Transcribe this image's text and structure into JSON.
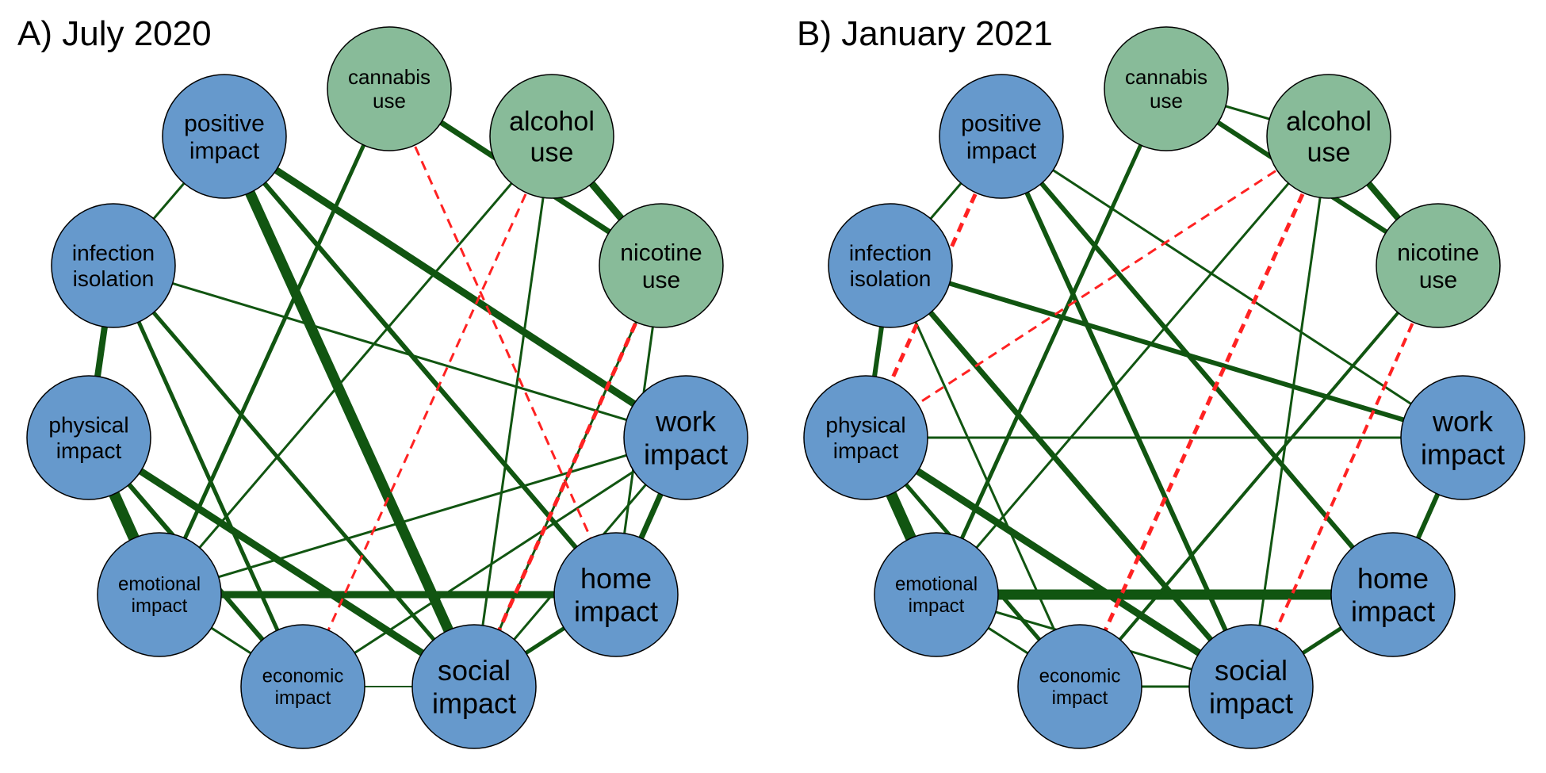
{
  "colors": {
    "impact_node": "#6699CC",
    "substance_node": "#88BB99",
    "positive_edge": "#115511",
    "negative_edge": "#FF2222"
  },
  "nodes": [
    {
      "id": "cannabis",
      "lines": [
        "cannabis",
        "use"
      ],
      "group": "substance"
    },
    {
      "id": "alcohol",
      "lines": [
        "alcohol",
        "use"
      ],
      "group": "substance"
    },
    {
      "id": "nicotine",
      "lines": [
        "nicotine",
        "use"
      ],
      "group": "substance"
    },
    {
      "id": "work",
      "lines": [
        "work",
        "impact"
      ],
      "group": "impact"
    },
    {
      "id": "home",
      "lines": [
        "home",
        "impact"
      ],
      "group": "impact"
    },
    {
      "id": "social",
      "lines": [
        "social",
        "impact"
      ],
      "group": "impact"
    },
    {
      "id": "economic",
      "lines": [
        "economic",
        "impact"
      ],
      "group": "impact"
    },
    {
      "id": "emotional",
      "lines": [
        "emotional",
        "impact"
      ],
      "group": "impact"
    },
    {
      "id": "physical",
      "lines": [
        "physical",
        "impact"
      ],
      "group": "impact"
    },
    {
      "id": "infection",
      "lines": [
        "infection",
        "isolation"
      ],
      "group": "impact"
    },
    {
      "id": "positive",
      "lines": [
        "positive",
        "impact"
      ],
      "group": "impact"
    }
  ],
  "panels": [
    {
      "title": "A) July 2020",
      "edges": [
        {
          "a": "cannabis",
          "b": "alcohol",
          "w": 0
        },
        {
          "a": "cannabis",
          "b": "nicotine",
          "w": 7
        },
        {
          "a": "alcohol",
          "b": "nicotine",
          "w": 9
        },
        {
          "a": "positive",
          "b": "infection",
          "w": 3
        },
        {
          "a": "positive",
          "b": "work",
          "w": 9
        },
        {
          "a": "positive",
          "b": "home",
          "w": 6
        },
        {
          "a": "positive",
          "b": "social",
          "w": 13
        },
        {
          "a": "infection",
          "b": "physical",
          "w": 8
        },
        {
          "a": "infection",
          "b": "work",
          "w": 3
        },
        {
          "a": "infection",
          "b": "economic",
          "w": 5
        },
        {
          "a": "infection",
          "b": "social",
          "w": 5
        },
        {
          "a": "physical",
          "b": "emotional",
          "w": 14
        },
        {
          "a": "physical",
          "b": "economic",
          "w": 6
        },
        {
          "a": "physical",
          "b": "social",
          "w": 9
        },
        {
          "a": "emotional",
          "b": "home",
          "w": 9
        },
        {
          "a": "emotional",
          "b": "economic",
          "w": 3
        },
        {
          "a": "emotional",
          "b": "work",
          "w": 3
        },
        {
          "a": "emotional",
          "b": "cannabis",
          "w": 5
        },
        {
          "a": "emotional",
          "b": "alcohol",
          "w": 3
        },
        {
          "a": "economic",
          "b": "social",
          "w": 2
        },
        {
          "a": "economic",
          "b": "work",
          "w": 3
        },
        {
          "a": "social",
          "b": "home",
          "w": 5
        },
        {
          "a": "social",
          "b": "alcohol",
          "w": 3
        },
        {
          "a": "social",
          "b": "nicotine",
          "w": 3
        },
        {
          "a": "home",
          "b": "work",
          "w": 7
        },
        {
          "a": "home",
          "b": "nicotine",
          "w": 3
        },
        {
          "a": "social",
          "b": "work",
          "w": 3
        },
        {
          "a": "cannabis",
          "b": "home",
          "w": -3
        },
        {
          "a": "alcohol",
          "b": "economic",
          "w": -3
        },
        {
          "a": "nicotine",
          "b": "social",
          "w": -5
        }
      ]
    },
    {
      "title": "B) January 2021",
      "edges": [
        {
          "a": "cannabis",
          "b": "alcohol",
          "w": 3
        },
        {
          "a": "cannabis",
          "b": "nicotine",
          "w": 6
        },
        {
          "a": "alcohol",
          "b": "nicotine",
          "w": 8
        },
        {
          "a": "positive",
          "b": "infection",
          "w": 3
        },
        {
          "a": "positive",
          "b": "work",
          "w": 3
        },
        {
          "a": "positive",
          "b": "home",
          "w": 6
        },
        {
          "a": "positive",
          "b": "social",
          "w": 6
        },
        {
          "a": "infection",
          "b": "work",
          "w": 6
        },
        {
          "a": "infection",
          "b": "physical",
          "w": 6
        },
        {
          "a": "infection",
          "b": "economic",
          "w": 3
        },
        {
          "a": "infection",
          "b": "social",
          "w": 7
        },
        {
          "a": "physical",
          "b": "work",
          "w": 3
        },
        {
          "a": "physical",
          "b": "emotional",
          "w": 14
        },
        {
          "a": "physical",
          "b": "economic",
          "w": 5
        },
        {
          "a": "physical",
          "b": "social",
          "w": 9
        },
        {
          "a": "emotional",
          "b": "home",
          "w": 13
        },
        {
          "a": "emotional",
          "b": "cannabis",
          "w": 5
        },
        {
          "a": "emotional",
          "b": "alcohol",
          "w": 3
        },
        {
          "a": "emotional",
          "b": "economic",
          "w": 3
        },
        {
          "a": "emotional",
          "b": "social",
          "w": 3
        },
        {
          "a": "economic",
          "b": "social",
          "w": 3
        },
        {
          "a": "economic",
          "b": "nicotine",
          "w": 4
        },
        {
          "a": "social",
          "b": "alcohol",
          "w": 3
        },
        {
          "a": "social",
          "b": "home",
          "w": 5
        },
        {
          "a": "home",
          "b": "work",
          "w": 6
        },
        {
          "a": "positive",
          "b": "physical",
          "w": -5
        },
        {
          "a": "alcohol",
          "b": "physical",
          "w": -3
        },
        {
          "a": "alcohol",
          "b": "economic",
          "w": -5
        },
        {
          "a": "nicotine",
          "b": "social",
          "w": -4
        }
      ]
    }
  ]
}
